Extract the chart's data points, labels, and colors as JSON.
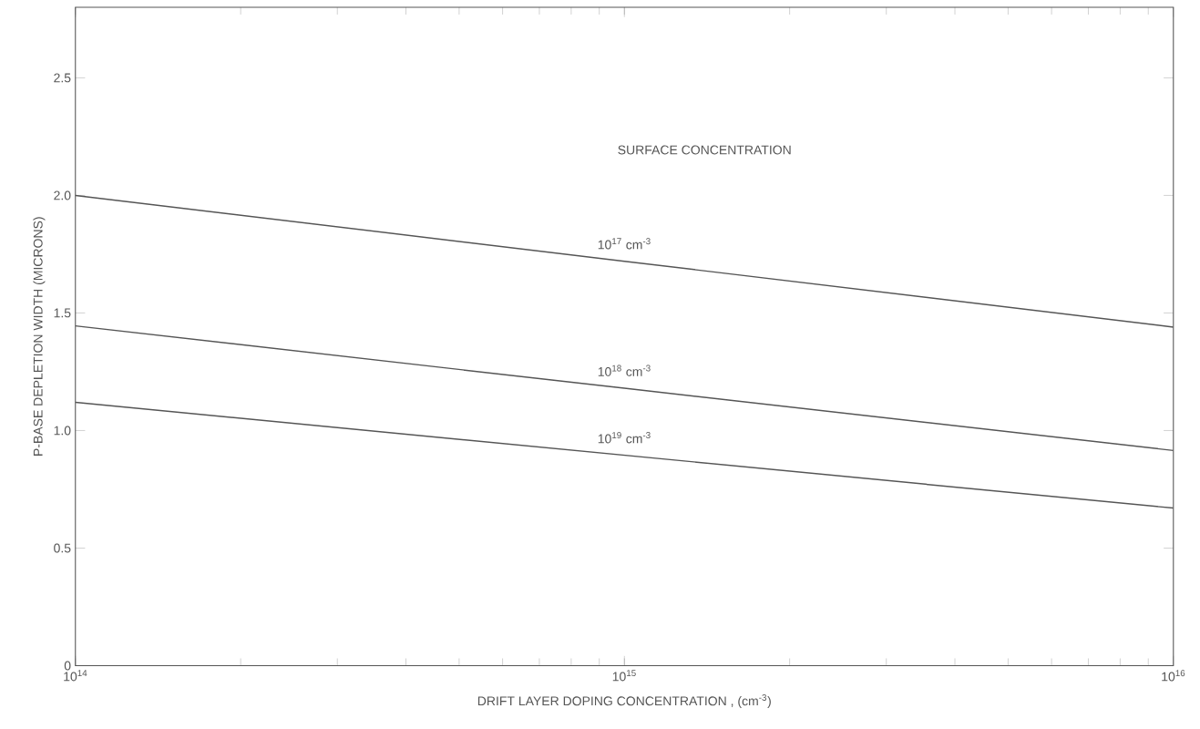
{
  "chart_data": {
    "type": "line",
    "xlabel": "DRIFT LAYER DOPING CONCENTRATION   ,   (cm$^{-3}$)",
    "ylabel": "P-BASE DEPLETION WIDTH (MICRONS)",
    "annotations": [
      "SURFACE CONCENTRATION"
    ],
    "log": "x",
    "x": [
      100000000000000.0,
      1000000000000000.0,
      1e+16
    ],
    "xlim": [
      100000000000000.0,
      1e+16
    ],
    "xticks": [
      {
        "value": 100000000000000.0,
        "label": "10$^{14}$"
      },
      {
        "value": 1000000000000000.0,
        "label": "10$^{15}$"
      },
      {
        "value": 1e+16,
        "label": "10$^{16}$"
      }
    ],
    "ylim": [
      0,
      2.8
    ],
    "yticks": [
      0,
      0.5,
      {
        "value": 1,
        "label": "1.0"
      },
      1.5,
      {
        "value": 2,
        "label": "2.0"
      },
      2.5
    ],
    "series": [
      {
        "name": "10$^{17}$ cm$^{-3}$",
        "color": "#555555",
        "values": [
          2.0,
          1.72,
          1.44
        ]
      },
      {
        "name": "10$^{18}$ cm$^{-3}$",
        "color": "#555555",
        "values": [
          1.445,
          1.18,
          0.915
        ]
      },
      {
        "name": "10$^{19}$ cm$^{-3}$",
        "color": "#555555",
        "values": [
          1.12,
          0.895,
          0.67
        ]
      }
    ]
  }
}
